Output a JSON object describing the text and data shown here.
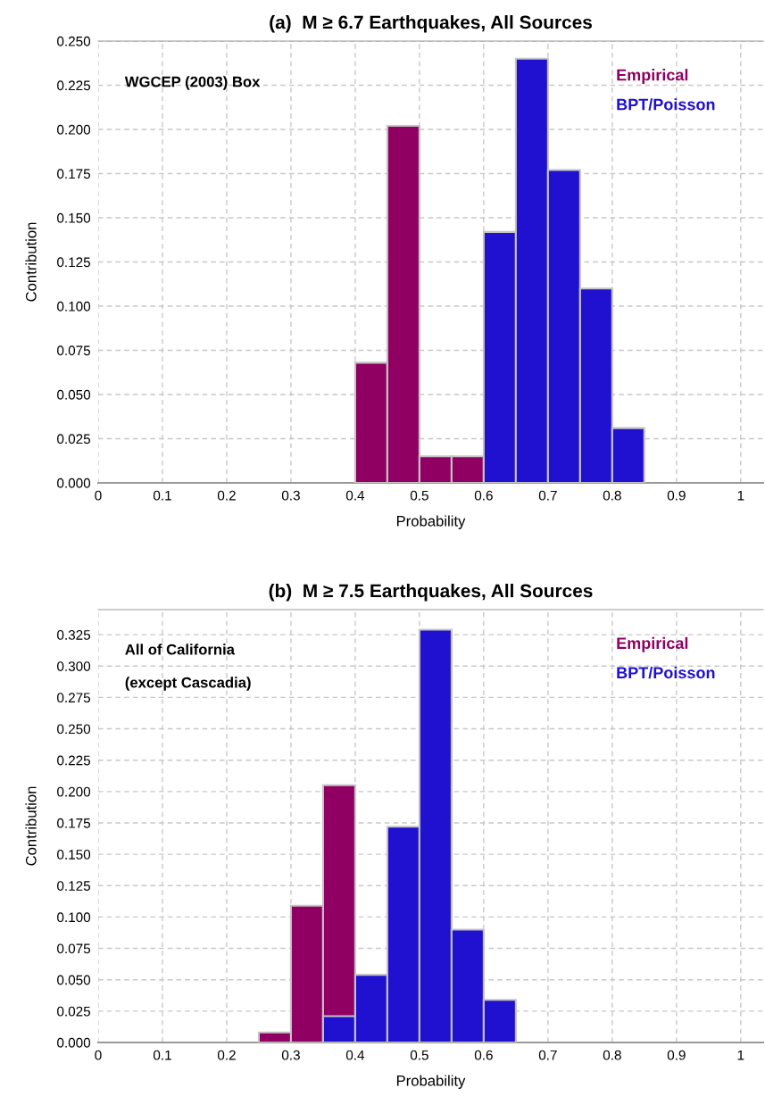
{
  "chart_data": [
    {
      "type": "histogram",
      "title": "(a)  M ≥ 6.7 Earthquakes, All Sources",
      "xlabel": "Probability",
      "ylabel": "Contribution",
      "bins": [
        0.4,
        0.45,
        0.5,
        0.55,
        0.6,
        0.65,
        0.7,
        0.75,
        0.8,
        0.85
      ],
      "series": [
        {
          "name": "Empirical",
          "color": "#900062",
          "values": [
            0.068,
            0.202,
            0.015,
            0.015,
            null,
            null,
            null,
            null,
            null
          ]
        },
        {
          "name": "BPT/Poisson",
          "color": "#2010d0",
          "values": [
            null,
            null,
            null,
            null,
            0.142,
            0.24,
            0.177,
            0.11,
            0.031
          ]
        }
      ],
      "xlim": [
        0,
        1.035
      ],
      "xticks": [
        0,
        0.1,
        0.2,
        0.3,
        0.4,
        0.5,
        0.6,
        0.7,
        0.8,
        0.9,
        1
      ],
      "ylim": [
        0,
        0.25
      ],
      "yticks": [
        {
          "value": 0,
          "label": "0.000"
        },
        {
          "value": 0.025,
          "label": "0.025"
        },
        {
          "value": 0.05,
          "label": "0.050"
        },
        {
          "value": 0.075,
          "label": "0.075"
        },
        {
          "value": 0.1,
          "label": "0.100"
        },
        {
          "value": 0.125,
          "label": "0.125"
        },
        {
          "value": 0.15,
          "label": "0.150"
        },
        {
          "value": 0.175,
          "label": "0.175"
        },
        {
          "value": 0.2,
          "label": "0.200"
        },
        {
          "value": 0.225,
          "label": "0.225"
        },
        {
          "value": 0.25,
          "label": "0.250"
        }
      ],
      "grid": true,
      "legend": "top right",
      "annotations": [
        "WGCEP (2003) Box"
      ]
    },
    {
      "type": "histogram",
      "title": "(b)  M ≥ 7.5 Earthquakes, All Sources",
      "xlabel": "Probability",
      "ylabel": "Contribution",
      "bins": [
        0.25,
        0.3,
        0.35,
        0.4,
        0.45,
        0.5,
        0.55,
        0.6,
        0.65
      ],
      "series": [
        {
          "name": "Empirical",
          "color": "#900062",
          "values": [
            0.008,
            0.109,
            0.205,
            null,
            null,
            null,
            null,
            null
          ]
        },
        {
          "name": "BPT/Poisson",
          "color": "#2010d0",
          "values": [
            null,
            null,
            0.021,
            0.054,
            0.172,
            0.329,
            0.09,
            0.034
          ]
        }
      ],
      "xlim": [
        0,
        1.035
      ],
      "xticks": [
        0,
        0.1,
        0.2,
        0.3,
        0.4,
        0.5,
        0.6,
        0.7,
        0.8,
        0.9,
        1
      ],
      "ylim": [
        0,
        0.345
      ],
      "yticks": [
        {
          "value": 0,
          "label": "0.000"
        },
        {
          "value": 0.025,
          "label": "0.025"
        },
        {
          "value": 0.05,
          "label": "0.050"
        },
        {
          "value": 0.075,
          "label": "0.075"
        },
        {
          "value": 0.1,
          "label": "0.100"
        },
        {
          "value": 0.125,
          "label": "0.125"
        },
        {
          "value": 0.15,
          "label": "0.150"
        },
        {
          "value": 0.175,
          "label": "0.175"
        },
        {
          "value": 0.2,
          "label": "0.200"
        },
        {
          "value": 0.225,
          "label": "0.225"
        },
        {
          "value": 0.25,
          "label": "0.250"
        },
        {
          "value": 0.275,
          "label": "0.275"
        },
        {
          "value": 0.3,
          "label": "0.300"
        },
        {
          "value": 0.325,
          "label": "0.325"
        }
      ],
      "grid": true,
      "legend": "top right",
      "annotations": [
        "All of California",
        "(except Cascadia)"
      ]
    }
  ]
}
